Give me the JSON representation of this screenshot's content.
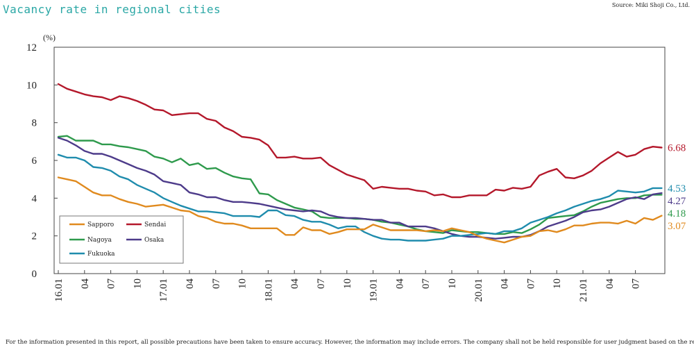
{
  "header": {
    "title": "Vacancy rate in regional cities",
    "source": "Source: Miki Shoji Co., Ltd."
  },
  "footer": {
    "disclaimer": "For the information presented in this report, all possible precautions have been taken to ensure accuracy. However, the information may include errors. The company shall not be held responsible for user judgment based on the report."
  },
  "chart_data": {
    "type": "line",
    "title": "Vacancy rate in regional cities",
    "unit_label": "(%)",
    "ylim": [
      0,
      12
    ],
    "yticks": [
      0,
      2,
      4,
      6,
      8,
      10,
      12
    ],
    "grid": false,
    "legend_placement": "bottom-left",
    "x_tick_labels": [
      "16.01",
      "04",
      "07",
      "10",
      "17.01",
      "04",
      "07",
      "10",
      "18.01",
      "04",
      "07",
      "10",
      "19.01",
      "04",
      "07",
      "10",
      "20.01",
      "04",
      "07",
      "10",
      "21.01",
      "04",
      "07"
    ],
    "series": [
      {
        "name": "Sendai",
        "color": "#b4182b",
        "end_label": "6.68",
        "values": [
          10.05,
          9.8,
          9.65,
          9.5,
          9.4,
          9.35,
          9.2,
          9.4,
          9.3,
          9.15,
          8.95,
          8.7,
          8.65,
          8.4,
          8.45,
          8.5,
          8.5,
          8.2,
          8.1,
          7.75,
          7.55,
          7.25,
          7.2,
          7.1,
          6.8,
          6.15,
          6.15,
          6.2,
          6.1,
          6.1,
          6.15,
          5.75,
          5.5,
          5.25,
          5.1,
          4.95,
          4.5,
          4.6,
          4.55,
          4.5,
          4.5,
          4.4,
          4.35,
          4.15,
          4.2,
          4.05,
          4.05,
          4.15,
          4.15,
          4.15,
          4.45,
          4.4,
          4.55,
          4.5,
          4.6,
          5.2,
          5.4,
          5.55,
          5.1,
          5.05,
          5.2,
          5.45,
          5.85,
          6.15,
          6.45,
          6.2,
          6.3,
          6.6,
          6.73,
          6.68
        ]
      },
      {
        "name": "Nagoya",
        "color": "#2e9a4c",
        "end_label": "4.18",
        "values": [
          7.25,
          7.3,
          7.05,
          7.05,
          7.05,
          6.85,
          6.85,
          6.75,
          6.7,
          6.6,
          6.5,
          6.2,
          6.1,
          5.9,
          6.1,
          5.75,
          5.85,
          5.55,
          5.6,
          5.35,
          5.15,
          5.05,
          5.0,
          4.25,
          4.2,
          3.9,
          3.7,
          3.5,
          3.4,
          3.3,
          3.0,
          2.95,
          2.95,
          2.95,
          2.9,
          2.9,
          2.85,
          2.75,
          2.7,
          2.6,
          2.5,
          2.35,
          2.25,
          2.2,
          2.15,
          2.3,
          2.25,
          2.2,
          2.2,
          2.15,
          2.1,
          2.1,
          2.2,
          2.15,
          2.35,
          2.6,
          2.95,
          3.0,
          3.05,
          3.1,
          3.3,
          3.55,
          3.75,
          3.85,
          3.95,
          4.0,
          4.0,
          4.15,
          4.18,
          4.18
        ]
      },
      {
        "name": "Osaka",
        "color": "#4d3b8a",
        "end_label": "4.27",
        "values": [
          7.2,
          7.05,
          6.8,
          6.5,
          6.35,
          6.35,
          6.2,
          6.0,
          5.8,
          5.6,
          5.45,
          5.25,
          4.9,
          4.8,
          4.7,
          4.3,
          4.2,
          4.05,
          4.05,
          3.9,
          3.8,
          3.8,
          3.75,
          3.7,
          3.6,
          3.5,
          3.4,
          3.35,
          3.3,
          3.35,
          3.3,
          3.1,
          3.0,
          2.95,
          2.95,
          2.9,
          2.85,
          2.85,
          2.7,
          2.7,
          2.5,
          2.5,
          2.5,
          2.4,
          2.25,
          2.1,
          2.0,
          1.95,
          1.95,
          1.9,
          1.85,
          1.9,
          1.95,
          1.95,
          2.05,
          2.25,
          2.5,
          2.65,
          2.8,
          3.0,
          3.25,
          3.35,
          3.4,
          3.55,
          3.75,
          3.95,
          4.05,
          3.95,
          4.2,
          4.27
        ]
      },
      {
        "name": "Fukuoka",
        "color": "#1f8cad",
        "end_label": "4.53",
        "values": [
          6.3,
          6.15,
          6.15,
          6.0,
          5.65,
          5.6,
          5.45,
          5.15,
          5.0,
          4.7,
          4.5,
          4.3,
          4.0,
          3.8,
          3.6,
          3.45,
          3.3,
          3.3,
          3.25,
          3.2,
          3.05,
          3.05,
          3.05,
          3.0,
          3.35,
          3.35,
          3.1,
          3.05,
          2.85,
          2.75,
          2.75,
          2.6,
          2.4,
          2.5,
          2.5,
          2.2,
          2.0,
          1.85,
          1.8,
          1.8,
          1.75,
          1.75,
          1.75,
          1.8,
          1.85,
          2.0,
          2.0,
          2.05,
          2.1,
          2.15,
          2.1,
          2.25,
          2.25,
          2.4,
          2.7,
          2.85,
          3.0,
          3.2,
          3.35,
          3.55,
          3.7,
          3.85,
          3.95,
          4.1,
          4.4,
          4.35,
          4.3,
          4.35,
          4.53,
          4.53
        ]
      },
      {
        "name": "Sapporo",
        "color": "#e08a1e",
        "end_label": "3.07",
        "values": [
          5.1,
          5.0,
          4.9,
          4.6,
          4.3,
          4.15,
          4.15,
          3.95,
          3.8,
          3.7,
          3.55,
          3.6,
          3.65,
          3.5,
          3.35,
          3.3,
          3.05,
          2.95,
          2.75,
          2.65,
          2.65,
          2.55,
          2.4,
          2.4,
          2.4,
          2.4,
          2.05,
          2.05,
          2.45,
          2.3,
          2.3,
          2.1,
          2.2,
          2.35,
          2.35,
          2.35,
          2.6,
          2.45,
          2.3,
          2.3,
          2.3,
          2.3,
          2.25,
          2.3,
          2.25,
          2.4,
          2.3,
          2.2,
          2.0,
          1.85,
          1.75,
          1.65,
          1.8,
          1.95,
          2.0,
          2.25,
          2.3,
          2.2,
          2.35,
          2.55,
          2.55,
          2.65,
          2.7,
          2.7,
          2.65,
          2.8,
          2.65,
          2.95,
          2.85,
          3.07
        ]
      }
    ]
  },
  "legend": {
    "items": [
      {
        "name": "Sapporo",
        "color": "#e08a1e"
      },
      {
        "name": "Sendai",
        "color": "#b4182b"
      },
      {
        "name": "Nagoya",
        "color": "#2e9a4c"
      },
      {
        "name": "Osaka",
        "color": "#4d3b8a"
      },
      {
        "name": "Fukuoka",
        "color": "#1f8cad"
      }
    ]
  }
}
